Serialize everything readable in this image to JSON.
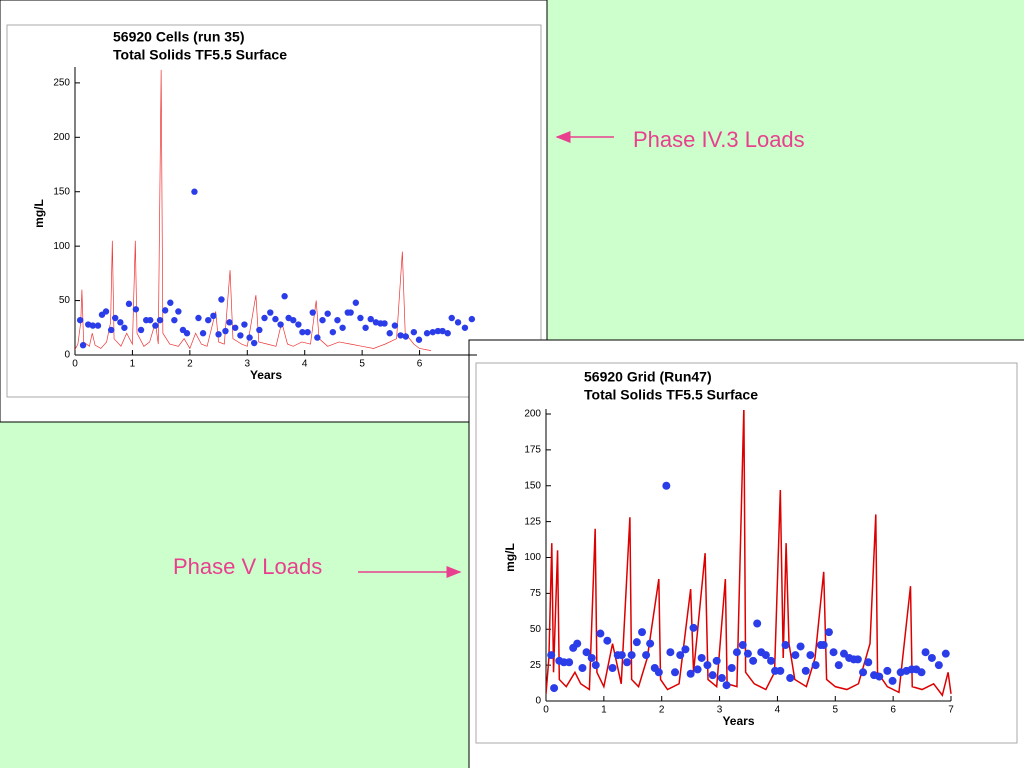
{
  "annotations": [
    "Phase IV.3 Loads",
    "Phase V Loads"
  ],
  "chart_data": [
    {
      "type": "line",
      "title": "56920 Cells (run 35)",
      "subtitle": "Total Solids TF5.5 Surface",
      "x_label": "Years",
      "y_label": "mg/L",
      "xlim": [
        0,
        7
      ],
      "xticks": [
        0,
        1,
        2,
        3,
        4,
        5,
        6
      ],
      "ylim": [
        0,
        260
      ],
      "yticks": [
        0,
        50,
        100,
        150,
        200,
        250
      ],
      "series": [
        {
          "style": "line",
          "color": "#ee3333",
          "x": [
            0,
            0.05,
            0.1,
            0.12,
            0.15,
            0.25,
            0.3,
            0.35,
            0.45,
            0.55,
            0.62,
            0.65,
            0.68,
            0.8,
            0.9,
            1.0,
            1.05,
            1.08,
            1.2,
            1.3,
            1.4,
            1.45,
            1.5,
            1.53,
            1.65,
            1.8,
            1.9,
            2.0,
            2.1,
            2.2,
            2.3,
            2.45,
            2.5,
            2.6,
            2.7,
            2.75,
            2.9,
            3.0,
            3.15,
            3.2,
            3.35,
            3.5,
            3.6,
            3.7,
            3.8,
            3.95,
            4.1,
            4.2,
            4.25,
            4.4,
            4.6,
            4.8,
            5.0,
            5.2,
            5.4,
            5.6,
            5.7,
            5.75,
            5.9,
            6.0,
            6.2
          ],
          "values": [
            5,
            10,
            30,
            60,
            12,
            8,
            20,
            9,
            6,
            12,
            30,
            105,
            15,
            8,
            20,
            10,
            105,
            20,
            8,
            12,
            30,
            10,
            262,
            20,
            10,
            8,
            15,
            6,
            20,
            10,
            8,
            40,
            12,
            10,
            78,
            15,
            10,
            8,
            55,
            12,
            10,
            8,
            30,
            10,
            8,
            12,
            10,
            50,
            15,
            8,
            12,
            10,
            8,
            6,
            10,
            15,
            95,
            20,
            10,
            6,
            4
          ]
        },
        {
          "style": "points",
          "color": "#2b3de8",
          "x": [
            0.09,
            0.14,
            0.23,
            0.31,
            0.4,
            0.47,
            0.54,
            0.63,
            0.7,
            0.79,
            0.86,
            0.94,
            1.06,
            1.15,
            1.24,
            1.31,
            1.4,
            1.48,
            1.57,
            1.66,
            1.73,
            1.8,
            1.88,
            1.95,
            2.08,
            2.15,
            2.23,
            2.32,
            2.41,
            2.5,
            2.55,
            2.62,
            2.69,
            2.79,
            2.88,
            2.95,
            3.04,
            3.12,
            3.21,
            3.3,
            3.4,
            3.49,
            3.58,
            3.65,
            3.72,
            3.8,
            3.89,
            3.96,
            4.05,
            4.14,
            4.22,
            4.31,
            4.4,
            4.49,
            4.57,
            4.66,
            4.75,
            4.8,
            4.89,
            4.97,
            5.06,
            5.15,
            5.24,
            5.32,
            5.39,
            5.48,
            5.57,
            5.67,
            5.76,
            5.9,
            5.99,
            6.13,
            6.23,
            6.32,
            6.4,
            6.49,
            6.56,
            6.67,
            6.79,
            6.91
          ],
          "values": [
            32,
            9,
            28,
            27,
            27,
            37,
            40,
            23,
            34,
            30,
            25,
            47,
            42,
            23,
            32,
            32,
            27,
            32,
            41,
            48,
            32,
            40,
            23,
            20,
            150,
            34,
            20,
            32,
            36,
            19,
            51,
            22,
            30,
            25,
            18,
            28,
            16,
            11,
            23,
            34,
            39,
            33,
            28,
            54,
            34,
            32,
            28,
            21,
            21,
            39,
            16,
            32,
            38,
            21,
            32,
            25,
            39,
            39,
            48,
            34,
            25,
            33,
            30,
            29,
            29,
            20,
            27,
            18,
            17,
            21,
            14,
            20,
            21,
            22,
            22,
            20,
            34,
            30,
            25,
            33
          ]
        }
      ]
    },
    {
      "type": "line",
      "title": "56920 Grid (Run47)",
      "subtitle": "Total Solids TF5.5 Surface",
      "x_label": "Years",
      "y_label": "mg/L",
      "xlim": [
        0,
        7
      ],
      "xticks": [
        0,
        1,
        2,
        3,
        4,
        5,
        6,
        7
      ],
      "ylim": [
        0,
        200
      ],
      "yticks": [
        0,
        25,
        50,
        75,
        100,
        125,
        150,
        175,
        200
      ],
      "series": [
        {
          "style": "line",
          "color": "#dd0000",
          "x": [
            0,
            0.05,
            0.1,
            0.13,
            0.2,
            0.23,
            0.35,
            0.5,
            0.6,
            0.75,
            0.85,
            0.88,
            1.0,
            1.15,
            1.3,
            1.45,
            1.48,
            1.6,
            1.75,
            1.95,
            1.98,
            2.1,
            2.3,
            2.5,
            2.55,
            2.75,
            2.8,
            2.95,
            3.1,
            3.13,
            3.3,
            3.42,
            3.45,
            3.6,
            3.8,
            3.95,
            4.05,
            4.1,
            4.15,
            4.2,
            4.3,
            4.5,
            4.65,
            4.8,
            4.85,
            5.0,
            5.2,
            5.4,
            5.6,
            5.7,
            5.73,
            5.9,
            6.1,
            6.3,
            6.33,
            6.5,
            6.7,
            6.85,
            6.95,
            7.0
          ],
          "values": [
            5,
            30,
            110,
            20,
            105,
            15,
            10,
            20,
            12,
            8,
            120,
            20,
            10,
            40,
            12,
            128,
            15,
            10,
            30,
            85,
            15,
            8,
            12,
            78,
            20,
            103,
            15,
            10,
            85,
            12,
            10,
            205,
            20,
            12,
            8,
            20,
            147,
            30,
            110,
            40,
            15,
            10,
            30,
            90,
            15,
            10,
            8,
            12,
            40,
            130,
            20,
            10,
            6,
            80,
            10,
            8,
            12,
            4,
            20,
            5
          ]
        },
        {
          "style": "points",
          "color": "#2b3de8",
          "x": [
            0.09,
            0.14,
            0.23,
            0.31,
            0.4,
            0.47,
            0.54,
            0.63,
            0.7,
            0.79,
            0.86,
            0.94,
            1.06,
            1.15,
            1.24,
            1.31,
            1.4,
            1.48,
            1.57,
            1.66,
            1.73,
            1.8,
            1.88,
            1.95,
            2.08,
            2.15,
            2.23,
            2.32,
            2.41,
            2.5,
            2.55,
            2.62,
            2.69,
            2.79,
            2.88,
            2.95,
            3.04,
            3.12,
            3.21,
            3.3,
            3.4,
            3.49,
            3.58,
            3.65,
            3.72,
            3.8,
            3.89,
            3.96,
            4.05,
            4.14,
            4.22,
            4.31,
            4.4,
            4.49,
            4.57,
            4.66,
            4.75,
            4.8,
            4.89,
            4.97,
            5.06,
            5.15,
            5.24,
            5.32,
            5.39,
            5.48,
            5.57,
            5.67,
            5.76,
            5.9,
            5.99,
            6.13,
            6.23,
            6.32,
            6.4,
            6.49,
            6.56,
            6.67,
            6.79,
            6.91
          ],
          "values": [
            32,
            9,
            28,
            27,
            27,
            37,
            40,
            23,
            34,
            30,
            25,
            47,
            42,
            23,
            32,
            32,
            27,
            32,
            41,
            48,
            32,
            40,
            23,
            20,
            150,
            34,
            20,
            32,
            36,
            19,
            51,
            22,
            30,
            25,
            18,
            28,
            16,
            11,
            23,
            34,
            39,
            33,
            28,
            54,
            34,
            32,
            28,
            21,
            21,
            39,
            16,
            32,
            38,
            21,
            32,
            25,
            39,
            39,
            48,
            34,
            25,
            33,
            30,
            29,
            29,
            20,
            27,
            18,
            17,
            21,
            14,
            20,
            21,
            22,
            22,
            20,
            34,
            30,
            25,
            33
          ]
        }
      ]
    }
  ]
}
